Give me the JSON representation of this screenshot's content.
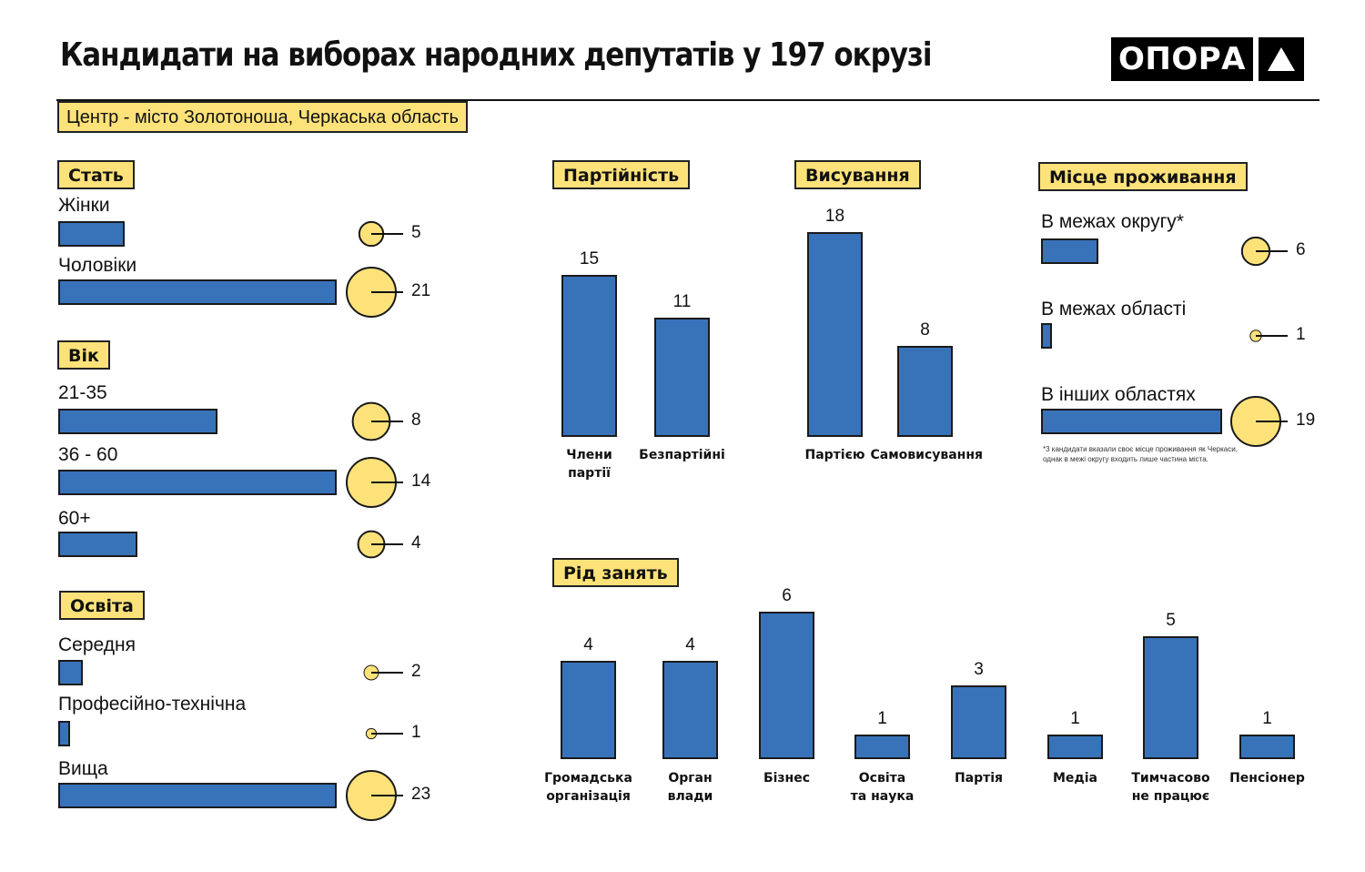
{
  "header": {
    "title": "Кандидати на виборах народних депутатів  у 197 окрузі",
    "subtitle": "Центр - місто Золотоноша, Черкаська область",
    "logo_text": "ОПОРА",
    "logo_icon": "triangle-up-icon"
  },
  "colors": {
    "bar": "#3873b9",
    "bubble": "#fde27a",
    "tag": "#fde27a",
    "outline": "#1a1a1a"
  },
  "chart_data": [
    {
      "type": "bar",
      "orientation": "horizontal",
      "title": "Стать",
      "categories": [
        "Жінки",
        "Чоловіки"
      ],
      "values": [
        5,
        21
      ],
      "value_labels": [
        "5",
        "21"
      ]
    },
    {
      "type": "bar",
      "orientation": "horizontal",
      "title": "Вік",
      "categories": [
        "21-35",
        "36 - 60",
        "60+"
      ],
      "values": [
        8,
        14,
        4
      ],
      "value_labels": [
        "8",
        "14",
        "4"
      ]
    },
    {
      "type": "bar",
      "orientation": "horizontal",
      "title": "Освіта",
      "categories": [
        "Середня",
        "Професійно-технічна",
        "Вища"
      ],
      "values": [
        2,
        1,
        23
      ],
      "value_labels": [
        "2",
        "1",
        "23"
      ]
    },
    {
      "type": "bar",
      "orientation": "vertical",
      "title": "Партійність",
      "categories": [
        "Члени\nпартії",
        "Безпартійні"
      ],
      "values": [
        15,
        11
      ],
      "value_labels": [
        "15",
        "11"
      ]
    },
    {
      "type": "bar",
      "orientation": "vertical",
      "title": "Висування",
      "categories": [
        "Партією",
        "Самовисування"
      ],
      "values": [
        18,
        8
      ],
      "value_labels": [
        "18",
        "8"
      ]
    },
    {
      "type": "bar",
      "orientation": "horizontal",
      "title": "Місце проживання",
      "categories": [
        "В межах округу*",
        "В межах області",
        "В інших областях"
      ],
      "values": [
        6,
        1,
        19
      ],
      "value_labels": [
        "6",
        "1",
        "19"
      ],
      "footnote": [
        "*3 кандидати вказали своє місце проживання як Черкаси,",
        "однак в межі округу входить лише частина міста."
      ]
    },
    {
      "type": "bar",
      "orientation": "vertical",
      "title": "Рід занять",
      "categories": [
        "Громадська\nорганізація",
        "Орган\nвлади",
        "Бізнес",
        "Освіта\nта наука",
        "Партія",
        "Медіа",
        "Тимчасово\nне працює",
        "Пенсіонер"
      ],
      "values": [
        4,
        4,
        6,
        1,
        3,
        1,
        5,
        1
      ],
      "value_labels": [
        "4",
        "4",
        "6",
        "1",
        "3",
        "1",
        "5",
        "1"
      ]
    }
  ]
}
